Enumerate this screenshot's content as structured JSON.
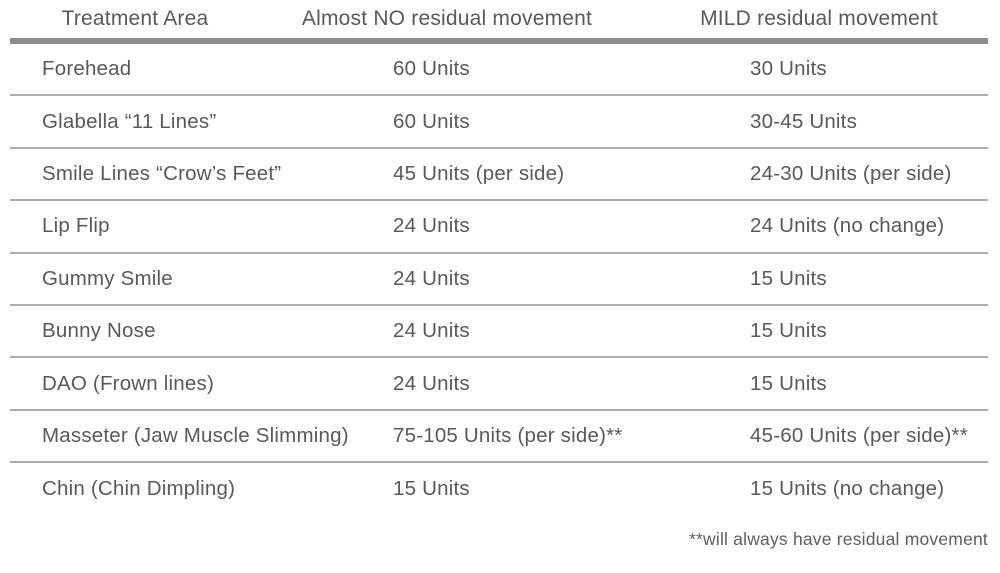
{
  "table": {
    "columns": {
      "area": "Treatment Area",
      "almost_no": "Almost NO residual movement",
      "mild": "MILD residual movement"
    },
    "rows": [
      {
        "area": "Forehead",
        "almost_no": "60 Units",
        "mild": "30 Units"
      },
      {
        "area": "Glabella “11 Lines”",
        "almost_no": "60 Units",
        "mild": "30-45 Units"
      },
      {
        "area": "Smile Lines “Crow’s Feet”",
        "almost_no": "45 Units (per side)",
        "mild": "24-30 Units (per side)"
      },
      {
        "area": "Lip Flip",
        "almost_no": "24 Units",
        "mild": "24 Units (no change)"
      },
      {
        "area": "Gummy Smile",
        "almost_no": "24 Units",
        "mild": "15 Units"
      },
      {
        "area": "Bunny Nose",
        "almost_no": "24 Units",
        "mild": "15 Units"
      },
      {
        "area": "DAO (Frown lines)",
        "almost_no": "24 Units",
        "mild": "15 Units"
      },
      {
        "area": "Masseter (Jaw Muscle Slimming)",
        "almost_no": "75-105 Units (per side)**",
        "mild": "45-60 Units (per side)**"
      },
      {
        "area": "Chin (Chin Dimpling)",
        "almost_no": "15 Units",
        "mild": "15 Units (no change)"
      }
    ],
    "footnote": "**will always have residual movement"
  },
  "colors": {
    "text": "#58595b",
    "row_divider": "#abadaf",
    "header_bar": "#8c8d8f",
    "background": "#ffffff"
  }
}
